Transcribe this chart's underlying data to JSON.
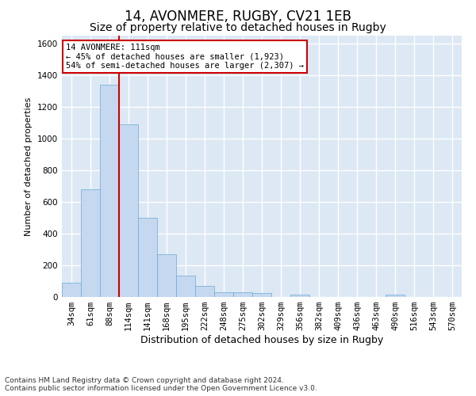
{
  "title1": "14, AVONMERE, RUGBY, CV21 1EB",
  "title2": "Size of property relative to detached houses in Rugby",
  "xlabel": "Distribution of detached houses by size in Rugby",
  "ylabel": "Number of detached properties",
  "bin_labels": [
    "34sqm",
    "61sqm",
    "88sqm",
    "114sqm",
    "141sqm",
    "168sqm",
    "195sqm",
    "222sqm",
    "248sqm",
    "275sqm",
    "302sqm",
    "329sqm",
    "356sqm",
    "382sqm",
    "409sqm",
    "436sqm",
    "463sqm",
    "490sqm",
    "516sqm",
    "543sqm",
    "570sqm"
  ],
  "bar_values": [
    90,
    680,
    1340,
    1090,
    500,
    270,
    135,
    70,
    30,
    30,
    25,
    0,
    15,
    0,
    0,
    0,
    0,
    15,
    0,
    0,
    0
  ],
  "bar_color": "#c5d8f0",
  "bar_edge_color": "#6aaad4",
  "highlight_index": 3,
  "highlight_color": "#cc0000",
  "ylim": [
    0,
    1650
  ],
  "yticks": [
    0,
    200,
    400,
    600,
    800,
    1000,
    1200,
    1400,
    1600
  ],
  "annotation_line1": "14 AVONMERE: 111sqm",
  "annotation_line2": "← 45% of detached houses are smaller (1,923)",
  "annotation_line3": "54% of semi-detached houses are larger (2,307) →",
  "annotation_box_color": "#ffffff",
  "annotation_box_edge": "#cc0000",
  "footer_text": "Contains HM Land Registry data © Crown copyright and database right 2024.\nContains public sector information licensed under the Open Government Licence v3.0.",
  "bg_color": "#dde8f5",
  "grid_color": "#ffffff",
  "fig_bg_color": "#ffffff",
  "title1_fontsize": 12,
  "title2_fontsize": 10,
  "xlabel_fontsize": 9,
  "ylabel_fontsize": 8,
  "tick_fontsize": 7.5,
  "annotation_fontsize": 7.5,
  "footer_fontsize": 6.5
}
